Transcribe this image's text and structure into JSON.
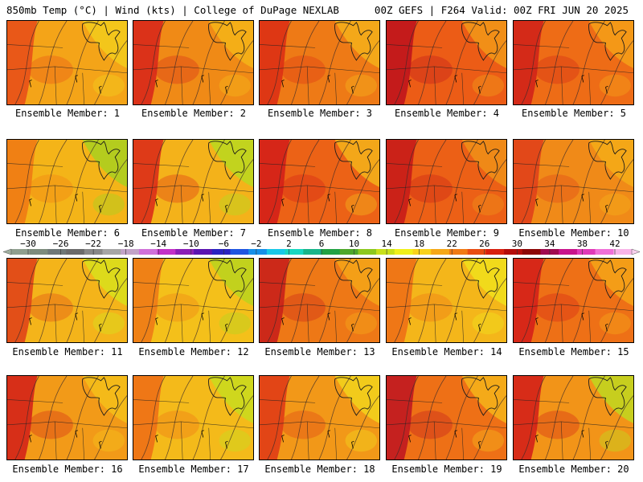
{
  "header": {
    "left": "850mb Temp (°C) | Wind (kts) | College of DuPage NEXLAB",
    "right": "00Z GEFS | F264 Valid: 00Z FRI JUN 20 2025"
  },
  "colorbar": {
    "ticks": [
      "−30",
      "−26",
      "−22",
      "−18",
      "−14",
      "−10",
      "−6",
      "−2",
      "2",
      "6",
      "10",
      "14",
      "18",
      "22",
      "26",
      "30",
      "34",
      "38",
      "42"
    ],
    "colors": [
      "#8f9f8f",
      "#7d8b7d",
      "#6f7878",
      "#6b6b6b",
      "#888888",
      "#a6a6a6",
      "#c2a3c8",
      "#d070d8",
      "#c230c8",
      "#8b1fb7",
      "#5a14b0",
      "#2a23c0",
      "#1e55e0",
      "#1690e8",
      "#18c8e8",
      "#19d7c0",
      "#18b58a",
      "#22a244",
      "#4da82a",
      "#8cc81e",
      "#c8e01a",
      "#f0f01a",
      "#f8d21a",
      "#f5a818",
      "#f07a14",
      "#e84c12",
      "#d8200e",
      "#b40c0a",
      "#8c0606",
      "#a00a50",
      "#c8148c",
      "#e03ab8",
      "#f070d8",
      "#f8b4e8"
    ]
  },
  "panels": [
    {
      "label": "Ensemble Member: 1",
      "base": "#f4a418",
      "warm": "#e85018",
      "cool": "#f2cc1c"
    },
    {
      "label": "Ensemble Member: 2",
      "base": "#f08a16",
      "warm": "#d8281a",
      "cool": "#f4b418"
    },
    {
      "label": "Ensemble Member: 3",
      "base": "#ee7a16",
      "warm": "#dc3014",
      "cool": "#f4b01a"
    },
    {
      "label": "Ensemble Member: 4",
      "base": "#ec5c16",
      "warm": "#c0141c",
      "cool": "#f29818"
    },
    {
      "label": "Ensemble Member: 5",
      "base": "#ee6c16",
      "warm": "#d02418",
      "cool": "#f4a018"
    },
    {
      "label": "Ensemble Member: 6",
      "base": "#f4b418",
      "warm": "#f07a14",
      "cool": "#a8d020"
    },
    {
      "label": "Ensemble Member: 7",
      "base": "#f4b21a",
      "warm": "#dc2c18",
      "cool": "#b8d820"
    },
    {
      "label": "Ensemble Member: 8",
      "base": "#ec6216",
      "warm": "#d42018",
      "cool": "#f4b41a"
    },
    {
      "label": "Ensemble Member: 9",
      "base": "#ec6016",
      "warm": "#c81c18",
      "cool": "#f09018"
    },
    {
      "label": "Ensemble Member: 10",
      "base": "#f08a18",
      "warm": "#e0401a",
      "cool": "#f4ac18"
    },
    {
      "label": "Ensemble Member: 11",
      "base": "#f4b41a",
      "warm": "#e04418",
      "cool": "#d8e01c"
    },
    {
      "label": "Ensemble Member: 12",
      "base": "#f4c01a",
      "warm": "#ee7a16",
      "cool": "#b8d41e"
    },
    {
      "label": "Ensemble Member: 13",
      "base": "#ee7816",
      "warm": "#c8201a",
      "cool": "#f4a618"
    },
    {
      "label": "Ensemble Member: 14",
      "base": "#f4b61a",
      "warm": "#ee7016",
      "cool": "#f0e01c"
    },
    {
      "label": "Ensemble Member: 15",
      "base": "#ee7016",
      "warm": "#d42018",
      "cool": "#f4a418"
    },
    {
      "label": "Ensemble Member: 16",
      "base": "#f29a18",
      "warm": "#d42418",
      "cool": "#f4c01a"
    },
    {
      "label": "Ensemble Member: 17",
      "base": "#f4ba1a",
      "warm": "#ee7016",
      "cool": "#c8dc1e"
    },
    {
      "label": "Ensemble Member: 18",
      "base": "#f29818",
      "warm": "#e03c16",
      "cool": "#f2d41c"
    },
    {
      "label": "Ensemble Member: 19",
      "base": "#ee7016",
      "warm": "#c01820",
      "cool": "#f4b41a"
    },
    {
      "label": "Ensemble Member: 20",
      "base": "#f29418",
      "warm": "#d42018",
      "cool": "#c0d820"
    }
  ]
}
